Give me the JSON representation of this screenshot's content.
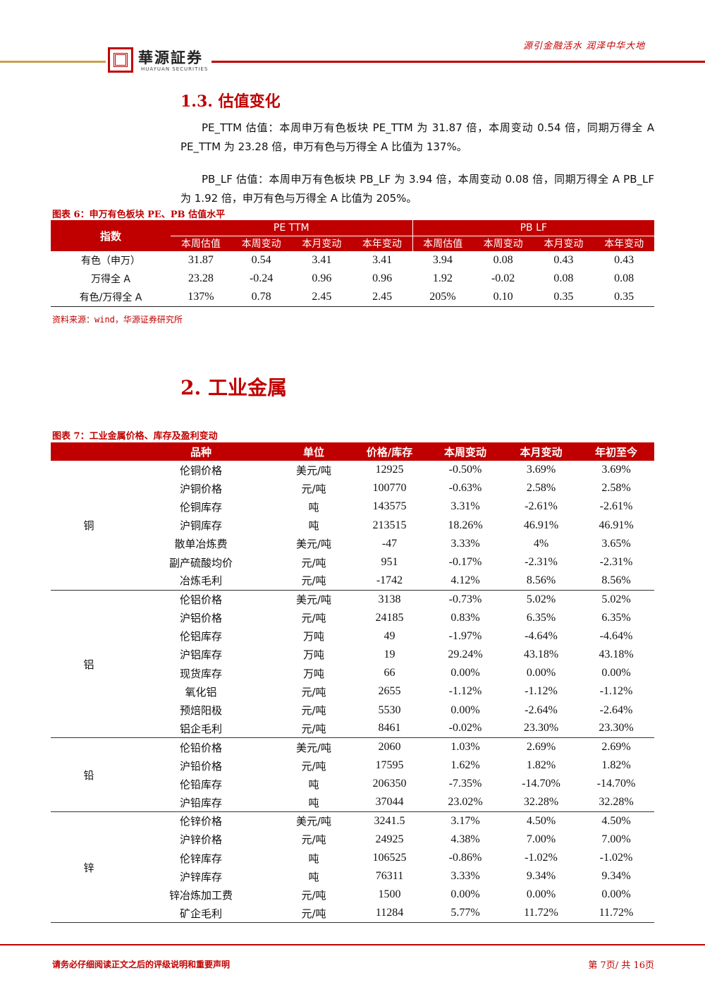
{
  "header": {
    "logo_cn": "華源証券",
    "logo_en": "HUAYUAN SECURITIES",
    "slogan": "源引金融活水 润泽中华大地"
  },
  "section1": {
    "heading": "1.3. 估值变化",
    "paragraphs": [
      "PE_TTM 估值：本周申万有色板块 PE_TTM 为 31.87 倍，本周变动 0.54 倍，同期万得全 A PE_TTM 为 23.28 倍，申万有色与万得全 A 比值为 137%。",
      "PB_LF 估值：本周申万有色板块 PB_LF 为 3.94 倍，本周变动 0.08 倍，同期万得全 A PB_LF 为 1.92 倍，申万有色与万得全 A 比值为 205%。"
    ]
  },
  "table6": {
    "caption": "图表 6：申万有色板块 PE、PB 估值水平",
    "index_header": "指数",
    "groups": [
      "PE TTM",
      "PB LF"
    ],
    "columns": [
      "本周估值",
      "本周变动",
      "本月变动",
      "本年变动",
      "本周估值",
      "本周变动",
      "本月变动",
      "本年变动"
    ],
    "rows": [
      [
        "有色（申万）",
        "31.87",
        "0.54",
        "3.41",
        "3.41",
        "3.94",
        "0.08",
        "0.43",
        "0.43"
      ],
      [
        "万得全 A",
        "23.28",
        "-0.24",
        "0.96",
        "0.96",
        "1.92",
        "-0.02",
        "0.08",
        "0.08"
      ],
      [
        "有色/万得全 A",
        "137%",
        "0.78",
        "2.45",
        "2.45",
        "205%",
        "0.10",
        "0.35",
        "0.35"
      ]
    ],
    "source": "资料来源：wind，华源证券研究所"
  },
  "section2": {
    "heading": "2. 工业金属"
  },
  "table7": {
    "caption": "图表 7：工业金属价格、库存及盈利变动",
    "columns": [
      "品种",
      "单位",
      "价格/库存",
      "本周变动",
      "本月变动",
      "年初至今"
    ],
    "groups": [
      {
        "name": "铜",
        "rows": [
          [
            "伦铜价格",
            "美元/吨",
            "12925",
            "-0.50%",
            "3.69%",
            "3.69%"
          ],
          [
            "沪铜价格",
            "元/吨",
            "100770",
            "-0.63%",
            "2.58%",
            "2.58%"
          ],
          [
            "伦铜库存",
            "吨",
            "143575",
            "3.31%",
            "-2.61%",
            "-2.61%"
          ],
          [
            "沪铜库存",
            "吨",
            "213515",
            "18.26%",
            "46.91%",
            "46.91%"
          ],
          [
            "散单冶炼费",
            "美元/吨",
            "-47",
            "3.33%",
            "4%",
            "3.65%"
          ],
          [
            "副产硫酸均价",
            "元/吨",
            "951",
            "-0.17%",
            "-2.31%",
            "-2.31%"
          ],
          [
            "冶炼毛利",
            "元/吨",
            "-1742",
            "4.12%",
            "8.56%",
            "8.56%"
          ]
        ]
      },
      {
        "name": "铝",
        "rows": [
          [
            "伦铝价格",
            "美元/吨",
            "3138",
            "-0.73%",
            "5.02%",
            "5.02%"
          ],
          [
            "沪铝价格",
            "元/吨",
            "24185",
            "0.83%",
            "6.35%",
            "6.35%"
          ],
          [
            "伦铝库存",
            "万吨",
            "49",
            "-1.97%",
            "-4.64%",
            "-4.64%"
          ],
          [
            "沪铝库存",
            "万吨",
            "19",
            "29.24%",
            "43.18%",
            "43.18%"
          ],
          [
            "现货库存",
            "万吨",
            "66",
            "0.00%",
            "0.00%",
            "0.00%"
          ],
          [
            "氧化铝",
            "元/吨",
            "2655",
            "-1.12%",
            "-1.12%",
            "-1.12%"
          ],
          [
            "预焙阳极",
            "元/吨",
            "5530",
            "0.00%",
            "-2.64%",
            "-2.64%"
          ],
          [
            "铝企毛利",
            "元/吨",
            "8461",
            "-0.02%",
            "23.30%",
            "23.30%"
          ]
        ]
      },
      {
        "name": "铅",
        "rows": [
          [
            "伦铅价格",
            "美元/吨",
            "2060",
            "1.03%",
            "2.69%",
            "2.69%"
          ],
          [
            "沪铅价格",
            "元/吨",
            "17595",
            "1.62%",
            "1.82%",
            "1.82%"
          ],
          [
            "伦铅库存",
            "吨",
            "206350",
            "-7.35%",
            "-14.70%",
            "-14.70%"
          ],
          [
            "沪铅库存",
            "吨",
            "37044",
            "23.02%",
            "32.28%",
            "32.28%"
          ]
        ]
      },
      {
        "name": "锌",
        "rows": [
          [
            "伦锌价格",
            "美元/吨",
            "3241.5",
            "3.17%",
            "4.50%",
            "4.50%"
          ],
          [
            "沪锌价格",
            "元/吨",
            "24925",
            "4.38%",
            "7.00%",
            "7.00%"
          ],
          [
            "伦锌库存",
            "吨",
            "106525",
            "-0.86%",
            "-1.02%",
            "-1.02%"
          ],
          [
            "沪锌库存",
            "吨",
            "76311",
            "3.33%",
            "9.34%",
            "9.34%"
          ],
          [
            "锌冶炼加工费",
            "元/吨",
            "1500",
            "0.00%",
            "0.00%",
            "0.00%"
          ],
          [
            "矿企毛利",
            "元/吨",
            "11284",
            "5.77%",
            "11.72%",
            "11.72%"
          ]
        ]
      }
    ]
  },
  "footer": {
    "disclaimer": "请务必仔细阅读正文之后的评级说明和重要声明",
    "page": "第 7页/ 共 16页"
  }
}
